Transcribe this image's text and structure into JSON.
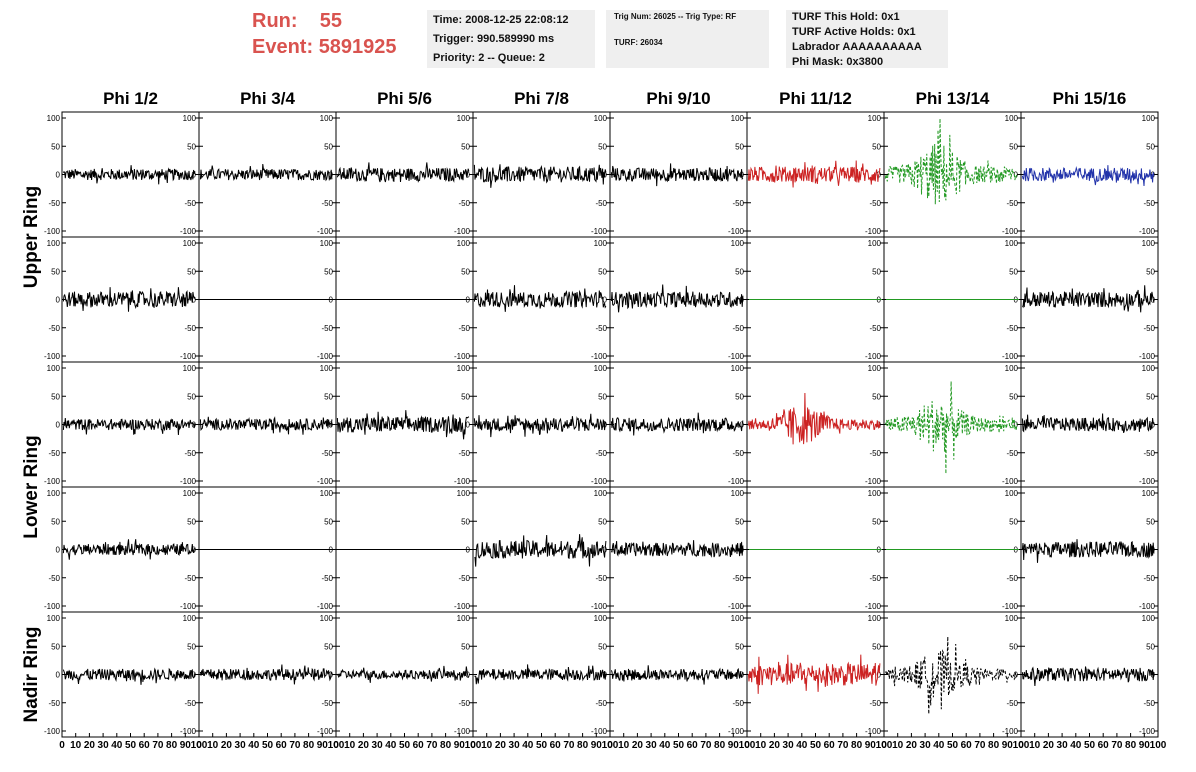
{
  "header": {
    "run_label": "Run:",
    "run_value": "55",
    "event_label": "Event:",
    "event_value": "5891925"
  },
  "info_box_1": {
    "time": "Time: 2008-12-25 22:08:12",
    "trigger": "Trigger: 990.589990 ms",
    "priority": "Priority: 2 -- Queue: 2"
  },
  "info_box_2": {
    "trig": "Trig Num: 26025 -- Trig Type: RF",
    "turf": "TURF: 26034"
  },
  "info_box_3": {
    "hold": "TURF This Hold: 0x1",
    "active": "TURF Active Holds: 0x1",
    "labrador": "Labrador AAAAAAAAAA",
    "phimask": "Phi Mask: 0x3800"
  },
  "chart_data": {
    "type": "line",
    "columns": [
      "Phi 1/2",
      "Phi 3/4",
      "Phi 5/6",
      "Phi 7/8",
      "Phi 9/10",
      "Phi 11/12",
      "Phi 13/14",
      "Phi 15/16"
    ],
    "ring_labels": [
      "Upper Ring",
      "Lower Ring",
      "Nadir Ring"
    ],
    "rows": 5,
    "ylim": [
      -100,
      100
    ],
    "y_ticks": [
      -100,
      -50,
      0,
      50,
      100
    ],
    "xlim": [
      0,
      100
    ],
    "x_ticks": [
      0,
      10,
      20,
      30,
      40,
      50,
      60,
      70,
      80,
      90,
      100
    ],
    "colors": {
      "default": "#000000",
      "red": "#cc2222",
      "green": "#229922",
      "blue": "#2233aa"
    },
    "panels": [
      [
        {
          "amp": 10,
          "flat": false,
          "color": "default"
        },
        {
          "amp": 10,
          "flat": false,
          "color": "default"
        },
        {
          "amp": 12,
          "flat": false,
          "color": "default"
        },
        {
          "amp": 14,
          "flat": false,
          "color": "default"
        },
        {
          "amp": 12,
          "flat": false,
          "color": "default"
        },
        {
          "amp": 14,
          "flat": false,
          "color": "red"
        },
        {
          "amp": 40,
          "flat": false,
          "color": "green",
          "dashed": true
        },
        {
          "amp": 12,
          "flat": false,
          "color": "blue"
        }
      ],
      [
        {
          "amp": 14,
          "flat": false,
          "color": "default"
        },
        {
          "amp": 0,
          "flat": true,
          "color": "default"
        },
        {
          "amp": 0,
          "flat": true,
          "color": "default"
        },
        {
          "amp": 14,
          "flat": false,
          "color": "default"
        },
        {
          "amp": 14,
          "flat": false,
          "color": "default"
        },
        {
          "amp": 0,
          "flat": true,
          "color": "green"
        },
        {
          "amp": 0,
          "flat": true,
          "color": "green"
        },
        {
          "amp": 14,
          "flat": false,
          "color": "default"
        }
      ],
      [
        {
          "amp": 10,
          "flat": false,
          "color": "default"
        },
        {
          "amp": 10,
          "flat": false,
          "color": "default"
        },
        {
          "amp": 14,
          "flat": false,
          "color": "default"
        },
        {
          "amp": 12,
          "flat": false,
          "color": "default"
        },
        {
          "amp": 12,
          "flat": false,
          "color": "default"
        },
        {
          "amp": 25,
          "flat": false,
          "color": "red"
        },
        {
          "amp": 35,
          "flat": false,
          "color": "green",
          "dashed": true
        },
        {
          "amp": 12,
          "flat": false,
          "color": "default"
        }
      ],
      [
        {
          "amp": 10,
          "flat": false,
          "color": "default"
        },
        {
          "amp": 0,
          "flat": true,
          "color": "default"
        },
        {
          "amp": 0,
          "flat": true,
          "color": "default"
        },
        {
          "amp": 16,
          "flat": false,
          "color": "default"
        },
        {
          "amp": 12,
          "flat": false,
          "color": "default"
        },
        {
          "amp": 0,
          "flat": true,
          "color": "green"
        },
        {
          "amp": 0,
          "flat": true,
          "color": "green"
        },
        {
          "amp": 14,
          "flat": false,
          "color": "default"
        }
      ],
      [
        {
          "amp": 10,
          "flat": false,
          "color": "default"
        },
        {
          "amp": 10,
          "flat": false,
          "color": "default"
        },
        {
          "amp": 8,
          "flat": false,
          "color": "default"
        },
        {
          "amp": 10,
          "flat": false,
          "color": "default"
        },
        {
          "amp": 10,
          "flat": false,
          "color": "default"
        },
        {
          "amp": 20,
          "flat": false,
          "color": "red"
        },
        {
          "amp": 30,
          "flat": false,
          "color": "default",
          "dashed": true
        },
        {
          "amp": 12,
          "flat": false,
          "color": "default"
        }
      ]
    ]
  }
}
